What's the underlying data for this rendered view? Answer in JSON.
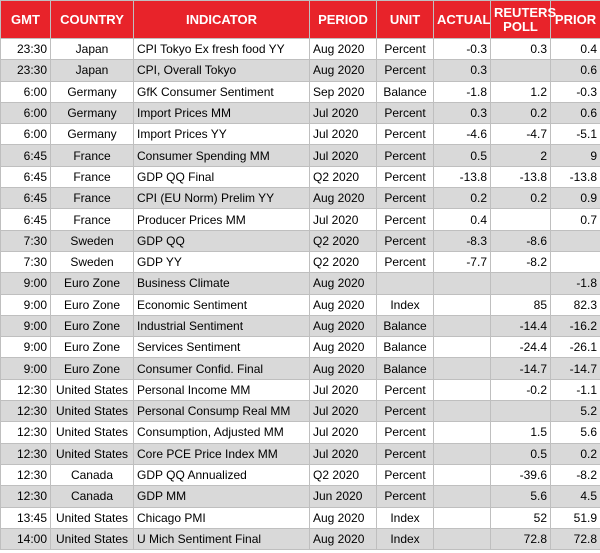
{
  "table": {
    "columns": [
      "GMT",
      "COUNTRY",
      "INDICATOR",
      "PERIOD",
      "UNIT",
      "ACTUAL",
      "REUTERS POLL",
      "PRIOR"
    ],
    "rows": [
      [
        "23:30",
        "Japan",
        "CPI Tokyo Ex fresh food YY",
        "Aug 2020",
        "Percent",
        "-0.3",
        "0.3",
        "0.4"
      ],
      [
        "23:30",
        "Japan",
        "CPI, Overall Tokyo",
        "Aug 2020",
        "Percent",
        "0.3",
        null,
        "0.6"
      ],
      [
        "6:00",
        "Germany",
        "GfK Consumer Sentiment",
        "Sep 2020",
        "Balance",
        "-1.8",
        "1.2",
        "-0.3"
      ],
      [
        "6:00",
        "Germany",
        "Import Prices MM",
        "Jul 2020",
        "Percent",
        "0.3",
        "0.2",
        "0.6"
      ],
      [
        "6:00",
        "Germany",
        "Import Prices YY",
        "Jul 2020",
        "Percent",
        "-4.6",
        "-4.7",
        "-5.1"
      ],
      [
        "6:45",
        "France",
        "Consumer Spending MM",
        "Jul 2020",
        "Percent",
        "0.5",
        "2",
        "9"
      ],
      [
        "6:45",
        "France",
        "GDP QQ Final",
        "Q2 2020",
        "Percent",
        "-13.8",
        "-13.8",
        "-13.8"
      ],
      [
        "6:45",
        "France",
        "CPI (EU Norm) Prelim YY",
        "Aug 2020",
        "Percent",
        "0.2",
        "0.2",
        "0.9"
      ],
      [
        "6:45",
        "France",
        "Producer Prices MM",
        "Jul 2020",
        "Percent",
        "0.4",
        null,
        "0.7"
      ],
      [
        "7:30",
        "Sweden",
        "GDP QQ",
        "Q2 2020",
        "Percent",
        "-8.3",
        "-8.6",
        null
      ],
      [
        "7:30",
        "Sweden",
        "GDP YY",
        "Q2 2020",
        "Percent",
        "-7.7",
        "-8.2",
        null
      ],
      [
        "9:00",
        "Euro Zone",
        "Business Climate",
        "Aug 2020",
        null,
        null,
        null,
        "-1.8"
      ],
      [
        "9:00",
        "Euro Zone",
        "Economic Sentiment",
        "Aug 2020",
        "Index",
        null,
        "85",
        "82.3"
      ],
      [
        "9:00",
        "Euro Zone",
        "Industrial Sentiment",
        "Aug 2020",
        "Balance",
        null,
        "-14.4",
        "-16.2"
      ],
      [
        "9:00",
        "Euro Zone",
        "Services Sentiment",
        "Aug 2020",
        "Balance",
        null,
        "-24.4",
        "-26.1"
      ],
      [
        "9:00",
        "Euro Zone",
        "Consumer Confid. Final",
        "Aug 2020",
        "Balance",
        null,
        "-14.7",
        "-14.7"
      ],
      [
        "12:30",
        "United States",
        "Personal Income MM",
        "Jul 2020",
        "Percent",
        null,
        "-0.2",
        "-1.1"
      ],
      [
        "12:30",
        "United States",
        "Personal Consump Real MM",
        "Jul 2020",
        "Percent",
        null,
        null,
        "5.2"
      ],
      [
        "12:30",
        "United States",
        "Consumption, Adjusted MM",
        "Jul 2020",
        "Percent",
        null,
        "1.5",
        "5.6"
      ],
      [
        "12:30",
        "United States",
        "Core PCE Price Index MM",
        "Jul 2020",
        "Percent",
        null,
        "0.5",
        "0.2"
      ],
      [
        "12:30",
        "Canada",
        "GDP QQ Annualized",
        "Q2 2020",
        "Percent",
        null,
        "-39.6",
        "-8.2"
      ],
      [
        "12:30",
        "Canada",
        "GDP MM",
        "Jun 2020",
        "Percent",
        null,
        "5.6",
        "4.5"
      ],
      [
        "13:45",
        "United States",
        "Chicago PMI",
        "Aug 2020",
        "Index",
        null,
        "52",
        "51.9"
      ],
      [
        "14:00",
        "United States",
        "U Mich Sentiment Final",
        "Aug 2020",
        "Index",
        null,
        "72.8",
        "72.8"
      ]
    ]
  }
}
